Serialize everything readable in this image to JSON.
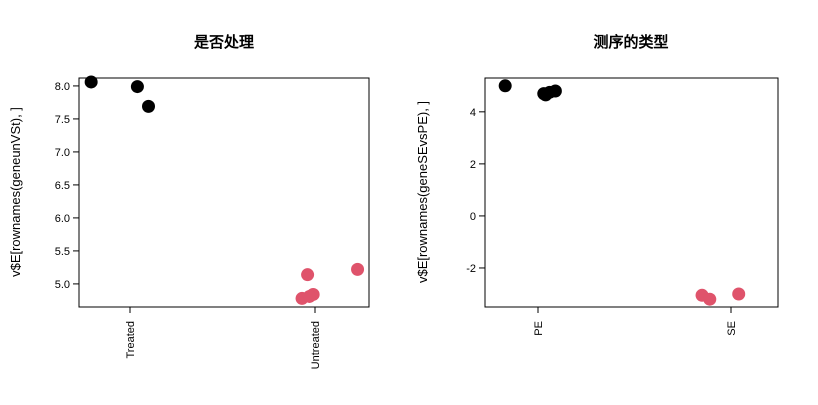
{
  "chart_data": [
    {
      "type": "scatter",
      "title": "是否处理",
      "ylabel": "v$E[rownames(geneunVSt), ]",
      "xlabel": "",
      "categories": [
        "Treated",
        "Untreated"
      ],
      "ylim": [
        4.65,
        8.12
      ],
      "yticks": [
        "8.0",
        "7.5",
        "7.0",
        "6.5",
        "6.0",
        "5.5",
        "5.0"
      ],
      "series": [
        {
          "category": "Treated",
          "color": "#000000",
          "points": [
            {
              "jitter": -0.21,
              "y": 8.06
            },
            {
              "jitter": 0.04,
              "y": 7.99
            },
            {
              "jitter": 0.1,
              "y": 7.69
            }
          ]
        },
        {
          "category": "Untreated",
          "color": "#DF536B",
          "points": [
            {
              "jitter": -0.04,
              "y": 5.14
            },
            {
              "jitter": 0.23,
              "y": 5.22
            },
            {
              "jitter": -0.07,
              "y": 4.78
            },
            {
              "jitter": -0.01,
              "y": 4.84
            },
            {
              "jitter": -0.03,
              "y": 4.81
            }
          ]
        }
      ]
    },
    {
      "type": "scatter",
      "title": "测序的类型",
      "ylabel": "v$E[rownames(geneSEvsPE), ]",
      "xlabel": "",
      "categories": [
        "PE",
        "SE"
      ],
      "ylim": [
        -3.5,
        5.3
      ],
      "yticks": [
        "4",
        "2",
        "0",
        "-2"
      ],
      "series": [
        {
          "category": "PE",
          "color": "#000000",
          "points": [
            {
              "jitter": -0.17,
              "y": 5.0
            },
            {
              "jitter": 0.06,
              "y": 4.75
            },
            {
              "jitter": 0.04,
              "y": 4.65
            },
            {
              "jitter": 0.09,
              "y": 4.8
            },
            {
              "jitter": 0.03,
              "y": 4.7
            }
          ]
        },
        {
          "category": "SE",
          "color": "#DF536B",
          "points": [
            {
              "jitter": -0.15,
              "y": -3.05
            },
            {
              "jitter": -0.11,
              "y": -3.2
            },
            {
              "jitter": 0.04,
              "y": -3.0
            }
          ]
        }
      ]
    }
  ]
}
